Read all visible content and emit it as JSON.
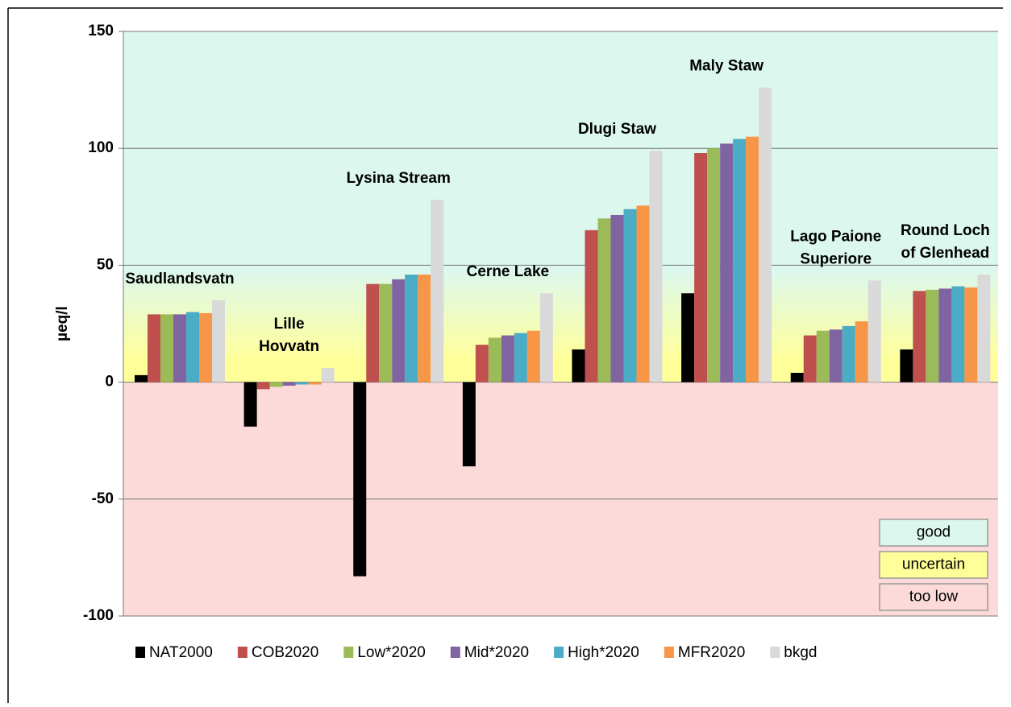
{
  "chart_data": {
    "type": "bar",
    "y_label": "µeq/l",
    "categories": [
      "Saudlandsvatn",
      "Lille\nHovvatn",
      "Lysina Stream",
      "Cerne Lake",
      "Dlugi Staw",
      "Maly Staw",
      "Lago Paione\nSuperiore",
      "Round Loch\nof Glenhead"
    ],
    "series": [
      {
        "name": "NAT2000",
        "color": "#000000",
        "values": [
          3,
          -19,
          -83,
          -36,
          14,
          38,
          4,
          14
        ]
      },
      {
        "name": "COB2020",
        "color": "#c0504d",
        "values": [
          29,
          -3,
          42,
          16,
          65,
          98,
          20,
          39
        ]
      },
      {
        "name": "Low*2020",
        "color": "#9bbb59",
        "values": [
          29,
          -2,
          42,
          19,
          70,
          100,
          22,
          39.5
        ]
      },
      {
        "name": "Mid*2020",
        "color": "#8064a2",
        "values": [
          29,
          -1.5,
          44,
          20,
          71.5,
          102,
          22.5,
          40
        ]
      },
      {
        "name": "High*2020",
        "color": "#4bacc6",
        "values": [
          30,
          -1,
          46,
          21,
          74,
          104,
          24,
          41
        ]
      },
      {
        "name": "MFR2020",
        "color": "#f79646",
        "values": [
          29.5,
          -1,
          46,
          22,
          75.5,
          105,
          26,
          40.5
        ]
      },
      {
        "name": "bkgd",
        "color": "#d9d9d9",
        "values": [
          35,
          6,
          78,
          38,
          99,
          126,
          43.5,
          46
        ]
      }
    ],
    "ylim": [
      -100,
      150
    ],
    "yticks": [
      -100,
      -50,
      0,
      50,
      100,
      150
    ],
    "grid": true,
    "zones": [
      {
        "label": "good",
        "color": "#dcf8ee"
      },
      {
        "label": "uncertain",
        "color": "#ffff99"
      },
      {
        "label": "too low",
        "color": "#fddada"
      }
    ]
  }
}
